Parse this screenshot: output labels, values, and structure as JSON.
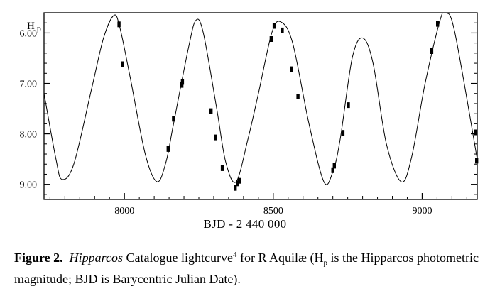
{
  "caption": {
    "figure_label": "Figure 2.",
    "italic_word": "Hipparcos",
    "text_a": " Catalogue lightcurve",
    "sup": "4",
    "text_b": " for R Aquilæ (H",
    "sub": "p",
    "text_c": " is the Hipparcos photometric magnitude; BJD is Barycentric Julian Date)."
  },
  "chart_data": {
    "type": "scatter",
    "title": "",
    "xlabel": "BJD - 2 440 000",
    "ylabel": "H",
    "ylabel_sub": "p",
    "xlim": [
      7730,
      9185
    ],
    "ylim": [
      9.3,
      5.6
    ],
    "y_inverted": true,
    "grid": false,
    "xticks": [
      8000,
      8500,
      9000
    ],
    "xtick_labels": [
      "8000",
      "8500",
      "9000"
    ],
    "yticks": [
      6.0,
      7.0,
      8.0,
      9.0
    ],
    "ytick_labels": [
      "6.00",
      "7.00",
      "8.00",
      "9.00"
    ],
    "series": [
      {
        "kind": "line",
        "x": [
          7730,
          7770,
          7790,
          7830,
          7890,
          7930,
          7965,
          7985,
          8020,
          8070,
          8110,
          8140,
          8165,
          8215,
          8240,
          8265,
          8310,
          8340,
          8375,
          8415,
          8450,
          8495,
          8525,
          8565,
          8620,
          8670,
          8700,
          8725,
          8765,
          8800,
          8835,
          8880,
          8930,
          8965,
          9010,
          9060,
          9080,
          9110,
          9185
        ],
        "y": [
          7.2,
          8.5,
          8.9,
          8.6,
          7.1,
          6.1,
          5.65,
          5.9,
          6.9,
          8.4,
          8.95,
          8.55,
          7.8,
          6.3,
          5.75,
          6.0,
          7.5,
          8.55,
          8.95,
          8.1,
          7.2,
          6.0,
          5.78,
          6.2,
          7.8,
          8.95,
          8.75,
          8.1,
          6.5,
          6.1,
          6.6,
          8.2,
          8.95,
          8.45,
          7.0,
          5.75,
          5.6,
          6.0,
          8.5
        ]
      },
      {
        "kind": "points",
        "x": [
          7982,
          7993,
          8147,
          8165,
          8193,
          8195,
          8291,
          8306,
          8329,
          8372,
          8380,
          8386,
          8493,
          8503,
          8530,
          8562,
          8583,
          8700,
          8705,
          8734,
          8752,
          9032,
          9052,
          9180,
          9183
        ],
        "y": [
          5.83,
          6.62,
          8.3,
          7.7,
          7.03,
          6.97,
          7.55,
          8.07,
          8.68,
          9.07,
          8.98,
          8.93,
          6.12,
          5.86,
          5.95,
          6.72,
          7.26,
          8.72,
          8.63,
          7.98,
          7.43,
          6.36,
          5.82,
          7.97,
          8.53
        ]
      }
    ]
  }
}
